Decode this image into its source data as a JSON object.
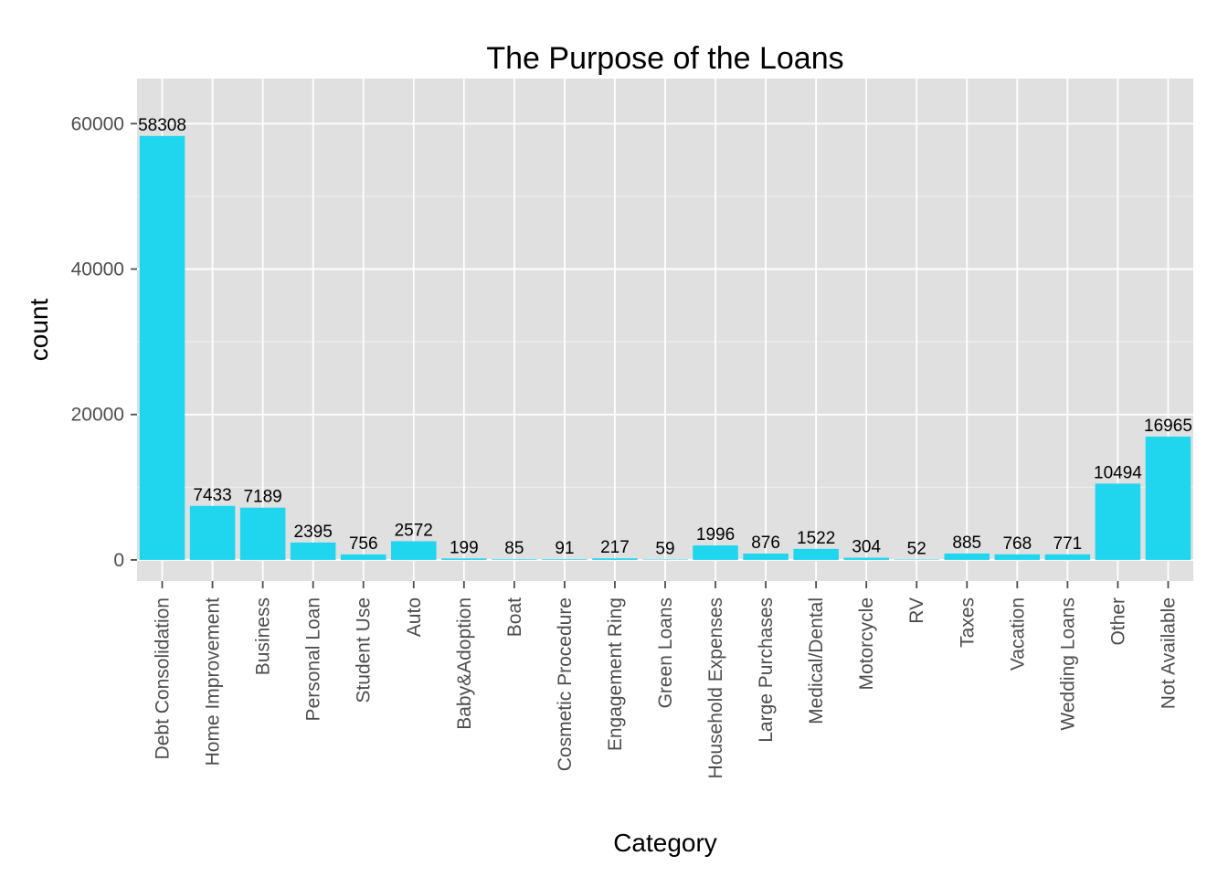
{
  "chart_data": {
    "type": "bar",
    "title": "The Purpose of the Loans",
    "xlabel": "Category",
    "ylabel": "count",
    "categories": [
      "Debt Consolidation",
      "Home Improvement",
      "Business",
      "Personal Loan",
      "Student Use",
      "Auto",
      "Baby&Adoption",
      "Boat",
      "Cosmetic Procedure",
      "Engagement Ring",
      "Green Loans",
      "Household Expenses",
      "Large Purchases",
      "Medical/Dental",
      "Motorcycle",
      "RV",
      "Taxes",
      "Vacation",
      "Wedding Loans",
      "Other",
      "Not Available"
    ],
    "values": [
      58308,
      7433,
      7189,
      2395,
      756,
      2572,
      199,
      85,
      91,
      217,
      59,
      1996,
      876,
      1522,
      304,
      52,
      885,
      768,
      771,
      10494,
      16965
    ],
    "value_labels": [
      "58308",
      "7433",
      "7189",
      "2395",
      "756",
      "2572",
      "199",
      "85",
      "91",
      "217",
      "59",
      "1996",
      "876",
      "1522",
      "304",
      "52",
      "885",
      "768",
      "771",
      "10494",
      "16965"
    ],
    "yticks": [
      0,
      20000,
      40000,
      60000
    ],
    "ytick_labels": [
      "0",
      "20000",
      "40000",
      "60000"
    ],
    "ylim": [
      -2900,
      66200
    ],
    "grid": true,
    "bar_color": "#1fd6ee",
    "panel_color": "#e0e0e0",
    "grid_color": "#ffffff"
  }
}
